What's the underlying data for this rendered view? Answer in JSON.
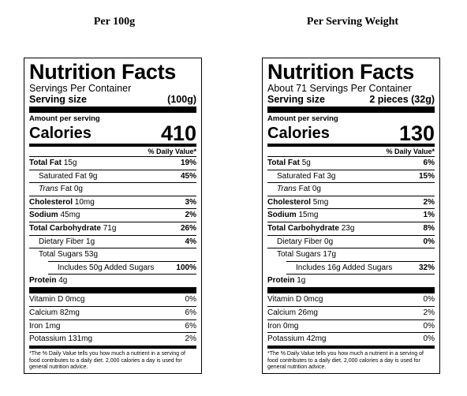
{
  "headings": {
    "left": "Per 100g",
    "right": "Per Serving Weight"
  },
  "panels": [
    {
      "title": "Nutrition Facts",
      "servings": "Servings Per Container",
      "serving_size_label": "Serving size",
      "serving_size_value": "(100g)",
      "amount_per_serving": "Amount per serving",
      "calories_label": "Calories",
      "calories_value": "410",
      "dv_header": "% Daily Value*",
      "total_fat": {
        "label": "Total Fat",
        "amount": "15g",
        "dv": "19%"
      },
      "saturated_fat": {
        "label": "Saturated Fat",
        "amount": "9g",
        "dv": "45%"
      },
      "trans_fat": {
        "label": "Trans",
        "label2": "Fat",
        "amount": "0g"
      },
      "cholesterol": {
        "label": "Cholesterol",
        "amount": "10mg",
        "dv": "3%"
      },
      "sodium": {
        "label": "Sodium",
        "amount": "45mg",
        "dv": "2%"
      },
      "total_carb": {
        "label": "Total Carbohydrate",
        "amount": "71g",
        "dv": "26%"
      },
      "fiber": {
        "label": "Dietary Fiber",
        "amount": "1g",
        "dv": "4%"
      },
      "total_sugars": {
        "label": "Total Sugars",
        "amount": "53g"
      },
      "added_sugars": {
        "prefix": "Includes",
        "amount": "50g",
        "suffix": "Added Sugars",
        "dv": "100%"
      },
      "protein": {
        "label": "Protein",
        "amount": "4g"
      },
      "vitamin_d": {
        "label": "Vitamin D",
        "amount": "0mcg",
        "dv": "0%"
      },
      "calcium": {
        "label": "Calcium",
        "amount": "82mg",
        "dv": "6%"
      },
      "iron": {
        "label": "Iron",
        "amount": "1mg",
        "dv": "6%"
      },
      "potassium": {
        "label": "Potassium",
        "amount": "131mg",
        "dv": "2%"
      },
      "footnote": "*The % Daily Value tells you how much a nutrient in a serving of food contributes to a daily diet. 2,000 calories a day is used for general nutrition advice."
    },
    {
      "title": "Nutrition Facts",
      "servings": "About 71 Servings Per Container",
      "serving_size_label": "Serving size",
      "serving_size_value": "2 pieces (32g)",
      "amount_per_serving": "Amount per serving",
      "calories_label": "Calories",
      "calories_value": "130",
      "dv_header": "% Daily Value*",
      "total_fat": {
        "label": "Total Fat",
        "amount": "5g",
        "dv": "6%"
      },
      "saturated_fat": {
        "label": "Saturated Fat",
        "amount": "3g",
        "dv": "15%"
      },
      "trans_fat": {
        "label": "Trans",
        "label2": "Fat",
        "amount": "0g"
      },
      "cholesterol": {
        "label": "Cholesterol",
        "amount": "5mg",
        "dv": "2%"
      },
      "sodium": {
        "label": "Sodium",
        "amount": "15mg",
        "dv": "1%"
      },
      "total_carb": {
        "label": "Total Carbohydrate",
        "amount": "23g",
        "dv": "8%"
      },
      "fiber": {
        "label": "Dietary Fiber",
        "amount": "0g",
        "dv": "0%"
      },
      "total_sugars": {
        "label": "Total Sugars",
        "amount": "17g"
      },
      "added_sugars": {
        "prefix": "Includes",
        "amount": "16g",
        "suffix": "Added Sugars",
        "dv": "32%"
      },
      "protein": {
        "label": "Protein",
        "amount": "1g"
      },
      "vitamin_d": {
        "label": "Vitamin D",
        "amount": "0mcg",
        "dv": "0%"
      },
      "calcium": {
        "label": "Calcium",
        "amount": "26mg",
        "dv": "2%"
      },
      "iron": {
        "label": "Iron",
        "amount": "0mg",
        "dv": "0%"
      },
      "potassium": {
        "label": "Potassium",
        "amount": "42mg",
        "dv": "0%"
      },
      "footnote": "*The % Daily Value tells you how much a nutrient in a serving of food contributes to a daily diet. 2,000 calories a day is used for general nutrition advice."
    }
  ]
}
